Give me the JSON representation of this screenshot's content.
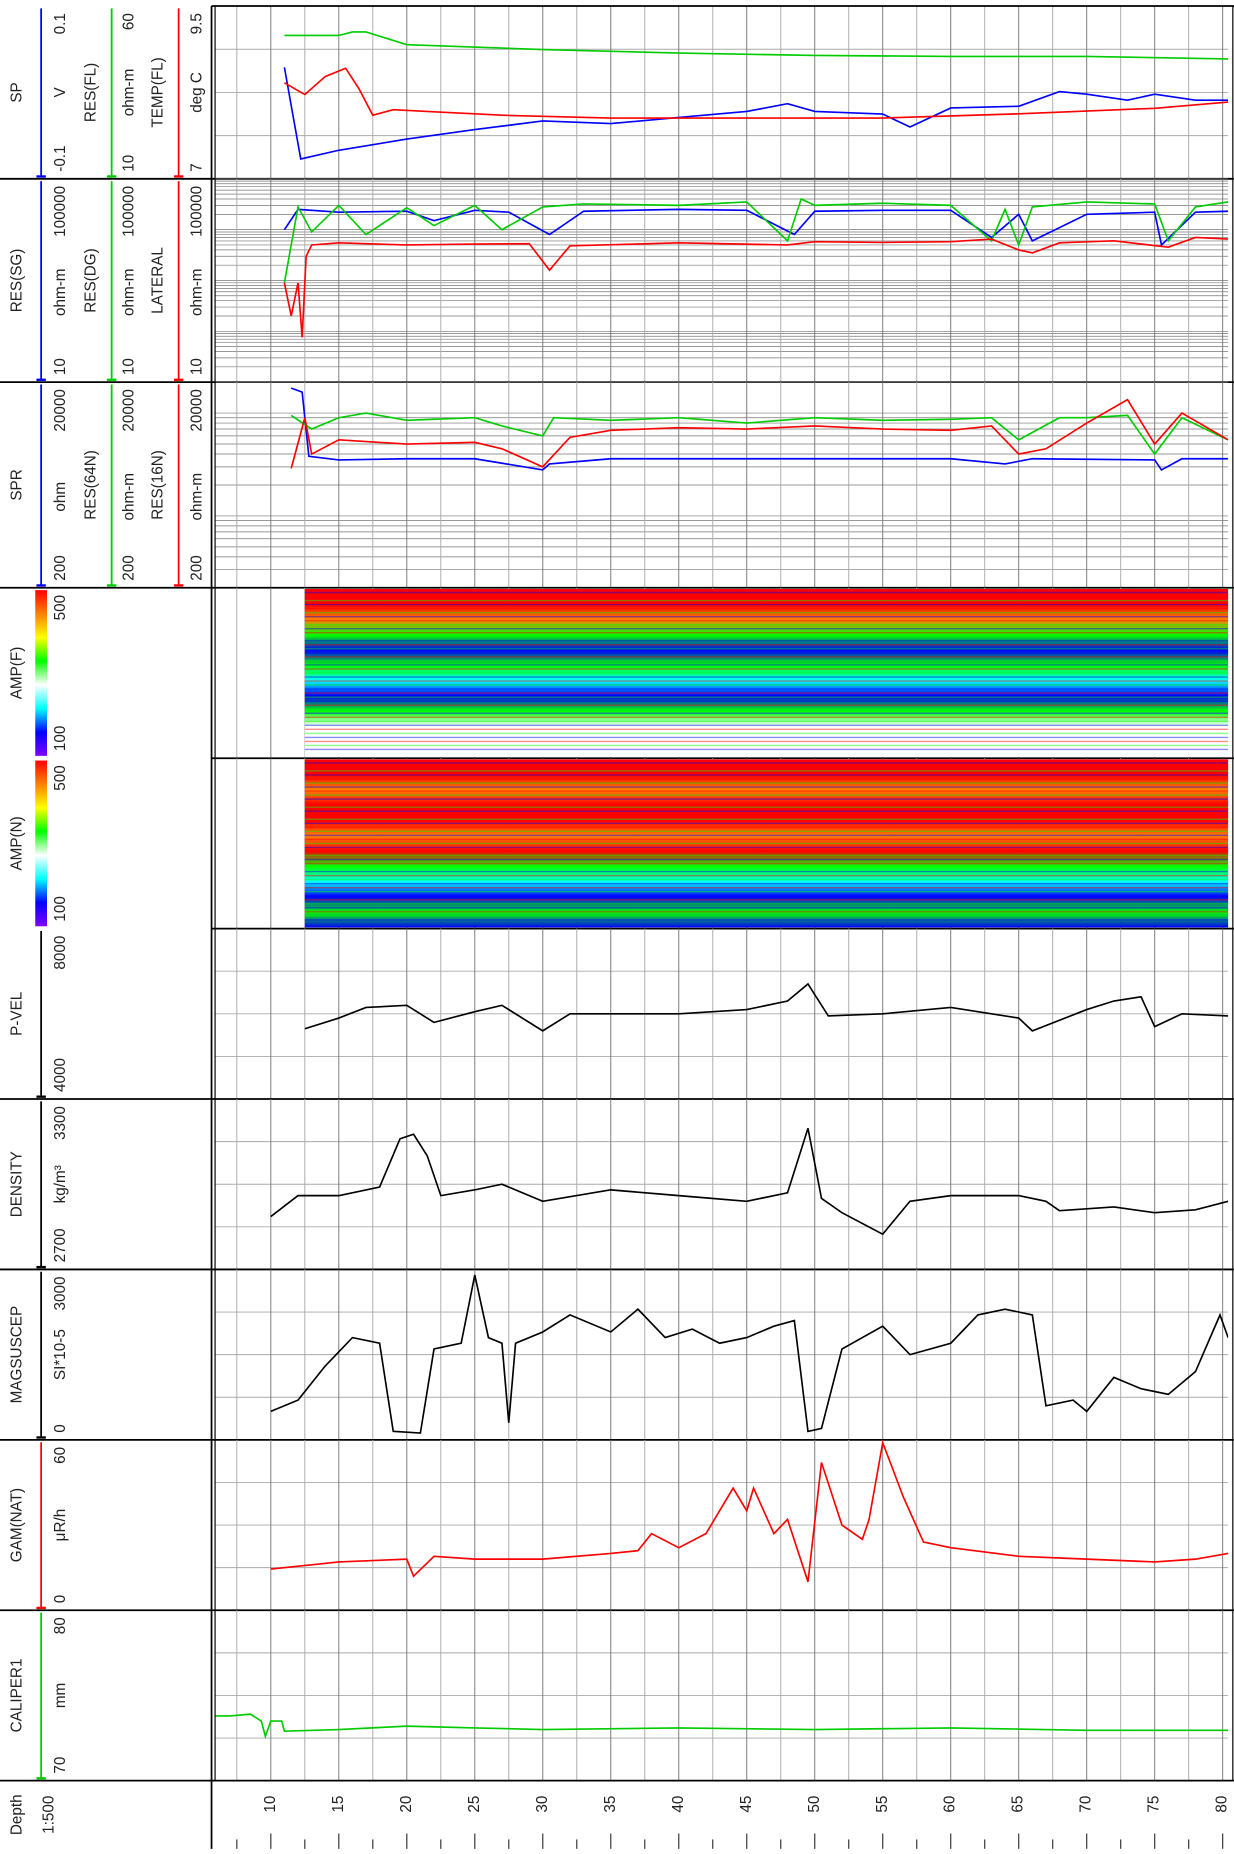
{
  "chart_data": {
    "type": "well-log",
    "depth_label": "Depth",
    "scale_label": "1:500",
    "xlim": [
      5.9,
      80.4
    ],
    "xticks": [
      10,
      15,
      20,
      25,
      30,
      35,
      40,
      45,
      50,
      55,
      60,
      65,
      70,
      75,
      80
    ],
    "minor_xticks": [
      7.5,
      12.5,
      17.5,
      22.5,
      27.5,
      32.5,
      37.5,
      42.5,
      47.5,
      52.5,
      57.5,
      62.5,
      67.5,
      72.5,
      77.5
    ],
    "tracks": [
      {
        "type": "line",
        "grid_lines": [
          -0.05,
          0,
          0.05
        ],
        "series": [
          {
            "name": "SP",
            "unit": "V",
            "color": "#0000ff",
            "ylim": [
              -0.1,
              0.1
            ],
            "x": [
              11,
              12.2,
              15,
              20,
              25,
              30,
              35,
              40,
              45,
              48,
              50,
              55,
              57,
              60,
              65,
              68,
              70,
              73,
              75,
              78,
              80.4
            ],
            "values": [
              0.029,
              -0.077,
              -0.067,
              -0.054,
              -0.043,
              -0.033,
              -0.036,
              -0.029,
              -0.022,
              -0.013,
              -0.022,
              -0.025,
              -0.04,
              -0.018,
              -0.016,
              0.001,
              -0.002,
              -0.009,
              -0.002,
              -0.009,
              -0.009
            ]
          },
          {
            "name": "RES(FL)",
            "unit": "ohm-m",
            "color": "#00cc00",
            "ylim": [
              10,
              60
            ],
            "x": [
              11,
              15,
              16,
              17,
              20,
              30,
              40,
              50,
              60,
              70,
              80.4
            ],
            "values": [
              51.5,
              51.5,
              52.5,
              52.5,
              48.8,
              47.4,
              46.4,
              45.7,
              45.4,
              45.4,
              44.7
            ]
          },
          {
            "name": "TEMP(FL)",
            "unit": "deg C",
            "color": "#ff0000",
            "ylim": [
              7,
              9.5
            ],
            "x": [
              11,
              12.5,
              14,
              15.5,
              16.5,
              17.5,
              19,
              22,
              27,
              35,
              45,
              55,
              65,
              75,
              80.4
            ],
            "values": [
              8.39,
              8.22,
              8.48,
              8.6,
              8.3,
              7.92,
              8.0,
              7.97,
              7.92,
              7.88,
              7.88,
              7.88,
              7.94,
              8.02,
              8.11
            ]
          }
        ]
      },
      {
        "type": "line",
        "log_scale": true,
        "grid_lines": [
          10,
          20,
          30,
          40,
          50,
          60,
          70,
          80,
          90,
          100,
          200,
          300,
          400,
          500,
          600,
          700,
          800,
          900,
          1000,
          2000,
          3000,
          4000,
          5000,
          6000,
          7000,
          8000,
          9000,
          10000,
          20000,
          30000,
          40000,
          50000,
          60000,
          70000,
          80000,
          90000,
          100000
        ],
        "series": [
          {
            "name": "RES(SG)",
            "unit": "ohm-m",
            "color": "#0000ff",
            "ylim": [
              10,
              100000
            ],
            "x": [
              11,
              12,
              15,
              20,
              22,
              25,
              27.5,
              30.5,
              33,
              40,
              45,
              48.5,
              50,
              55,
              60,
              63,
              65,
              66,
              70,
              75,
              75.5,
              78,
              80.4
            ],
            "values": [
              10000,
              25000,
              22000,
              23000,
              15000,
              24000,
              22000,
              8000,
              23000,
              25000,
              24000,
              8000,
              23000,
              24000,
              24000,
              7000,
              20000,
              6000,
              20000,
              22000,
              5000,
              22000,
              23000
            ]
          },
          {
            "name": "RES(DG)",
            "unit": "ohm-m",
            "color": "#00cc00",
            "ylim": [
              10,
              100000
            ],
            "x": [
              11,
              12,
              13,
              15,
              17,
              20,
              22,
              25,
              27,
              30,
              33,
              40,
              45,
              48,
              49,
              50,
              55,
              60,
              63,
              64,
              65,
              66,
              70,
              75,
              76,
              78,
              80.4
            ],
            "values": [
              900,
              28000,
              9000,
              30000,
              8000,
              27000,
              12000,
              30000,
              10000,
              28000,
              32000,
              30000,
              35000,
              6000,
              40000,
              30000,
              33000,
              30000,
              6000,
              25000,
              5000,
              28000,
              35000,
              32000,
              6000,
              28000,
              35000
            ]
          },
          {
            "name": "LATERAL",
            "unit": "ohm-m",
            "color": "#ff0000",
            "ylim": [
              10,
              100000
            ],
            "x": [
              11,
              11.5,
              12,
              12.3,
              12.6,
              13,
              15,
              20,
              25,
              29,
              30.5,
              32,
              40,
              48,
              50,
              55,
              60,
              63,
              65,
              66,
              68,
              72,
              76,
              78,
              80.4
            ],
            "values": [
              900,
              200,
              900,
              76,
              3000,
              5000,
              5500,
              5000,
              5200,
              5300,
              1600,
              4800,
              5500,
              5000,
              5800,
              5600,
              5800,
              6500,
              4000,
              3500,
              5500,
              6000,
              4500,
              7000,
              6500
            ]
          }
        ]
      },
      {
        "type": "line",
        "log_scale": true,
        "grid_lines": [
          200,
          300,
          400,
          500,
          600,
          700,
          800,
          900,
          1000,
          2000,
          3000,
          4000,
          5000,
          6000,
          7000,
          8000,
          9000,
          10000,
          20000
        ],
        "series": [
          {
            "name": "SPR",
            "unit": "ohm",
            "color": "#0000ff",
            "ylim": [
              200,
              20000
            ],
            "x": [
              11.5,
              12.3,
              12.8,
              15,
              20,
              25,
              30,
              30.5,
              35,
              40,
              50,
              60,
              64,
              66,
              75,
              75.5,
              77,
              80.4
            ],
            "values": [
              17500,
              16000,
              3800,
              3500,
              3600,
              3600,
              2800,
              3200,
              3600,
              3600,
              3600,
              3600,
              3200,
              3600,
              3500,
              2800,
              3600,
              3600
            ]
          },
          {
            "name": "RES(64N)",
            "unit": "ohm-m",
            "color": "#00cc00",
            "ylim": [
              200,
              20000
            ],
            "x": [
              11.5,
              13,
              15,
              17,
              20,
              25,
              27,
              30,
              30.8,
              35,
              40,
              45,
              50,
              55,
              60,
              63,
              65,
              68,
              70,
              73,
              75,
              77,
              80.4
            ],
            "values": [
              9500,
              7000,
              9000,
              10000,
              8500,
              9000,
              7500,
              6000,
              9000,
              8500,
              9000,
              8000,
              9000,
              8500,
              8700,
              9000,
              5500,
              9000,
              9000,
              9500,
              4000,
              9000,
              5500
            ]
          },
          {
            "name": "RES(16N)",
            "unit": "ohm-m",
            "color": "#ff0000",
            "ylim": [
              200,
              20000
            ],
            "x": [
              11.5,
              12.5,
              13,
              15,
              20,
              25,
              27,
              30,
              32,
              35,
              40,
              45,
              50,
              55,
              60,
              63,
              65,
              67,
              70,
              73,
              75,
              77,
              80.4
            ],
            "values": [
              2900,
              9000,
              4000,
              5500,
              5000,
              5200,
              4500,
              3000,
              5800,
              6800,
              7200,
              7000,
              7500,
              7000,
              6800,
              7500,
              4000,
              4500,
              8000,
              13500,
              5000,
              10000,
              5500
            ]
          }
        ]
      },
      {
        "type": "image",
        "depth_range": [
          12.5,
          80.4
        ],
        "series": [
          {
            "name": "AMP(F)",
            "ylim": [
              100,
              500
            ],
            "colormap": [
              "#8000ff",
              "#0000ff",
              "#00ffff",
              "#ffffff",
              "#00ff00",
              "#ffff00",
              "#ff8000",
              "#ff0000"
            ]
          }
        ]
      },
      {
        "type": "image",
        "depth_range": [
          12.5,
          80.4
        ],
        "series": [
          {
            "name": "AMP(N)",
            "ylim": [
              100,
              500
            ],
            "colormap": [
              "#8000ff",
              "#0000ff",
              "#00ffff",
              "#ffffff",
              "#00ff00",
              "#ffff00",
              "#ff8000",
              "#ff0000"
            ]
          }
        ]
      },
      {
        "type": "line",
        "grid_lines": [
          5000,
          6000,
          7000
        ],
        "series": [
          {
            "name": "P-VEL",
            "color": "#000000",
            "ylim": [
              4000,
              8000
            ],
            "x": [
              12.5,
              15,
              17,
              20,
              22,
              25,
              27,
              30,
              32,
              35,
              40,
              45,
              48,
              49.5,
              51,
              55,
              60,
              65,
              66,
              70,
              72,
              74,
              75,
              77,
              80.4
            ],
            "values": [
              5650,
              5900,
              6150,
              6200,
              5800,
              6050,
              6200,
              5600,
              6000,
              6000,
              6000,
              6100,
              6300,
              6700,
              5950,
              6000,
              6150,
              5900,
              5600,
              6100,
              6300,
              6400,
              5700,
              6000,
              5950
            ]
          }
        ]
      },
      {
        "type": "line",
        "grid_lines": [
          2850,
          3000,
          3150
        ],
        "series": [
          {
            "name": "DENSITY",
            "unit": "kg/m³",
            "color": "#000000",
            "ylim": [
              2700,
              3300
            ],
            "x": [
              10,
              12,
              15,
              18,
              19.5,
              20.5,
              21.5,
              22.5,
              25,
              27,
              30,
              35,
              40,
              45,
              48,
              49.5,
              50.5,
              52,
              55,
              57,
              60,
              65,
              67,
              68,
              72,
              75,
              78,
              80.4
            ],
            "values": [
              2886,
              2960,
              2960,
              2990,
              3160,
              3176,
              3100,
              2960,
              2980,
              3000,
              2940,
              2980,
              2960,
              2940,
              2970,
              3197,
              2950,
              2900,
              2824,
              2940,
              2960,
              2960,
              2940,
              2907,
              2920,
              2900,
              2910,
              2940
            ]
          }
        ]
      },
      {
        "type": "line",
        "grid_lines": [
          750,
          1500,
          2250
        ],
        "series": [
          {
            "name": "MAGSUSCEP",
            "unit": "SI*10-5",
            "color": "#000000",
            "ylim": [
              0,
              3000
            ],
            "x": [
              10,
              12,
              14,
              16,
              18,
              19,
              21,
              22,
              24,
              25,
              26,
              27,
              27.5,
              28,
              30,
              32,
              35,
              37,
              39,
              41,
              43,
              45,
              47,
              48.5,
              49.5,
              50.5,
              52,
              55,
              57,
              60,
              62,
              64,
              66,
              67,
              69,
              70,
              72,
              74,
              76,
              78,
              79.8,
              80.4
            ],
            "values": [
              500,
              700,
              1300,
              1800,
              1700,
              150,
              120,
              1600,
              1700,
              2900,
              1800,
              1700,
              300,
              1700,
              1900,
              2200,
              1900,
              2300,
              1800,
              1950,
              1700,
              1800,
              2000,
              2100,
              150,
              200,
              1600,
              2000,
              1500,
              1700,
              2200,
              2300,
              2200,
              600,
              700,
              500,
              1100,
              900,
              800,
              1200,
              2200,
              1800
            ]
          }
        ]
      },
      {
        "type": "line",
        "grid_lines": [
          15,
          30,
          45
        ],
        "series": [
          {
            "name": "GAM(NAT)",
            "unit": "μR/h",
            "color": "#ff0000",
            "ylim": [
              0,
              60
            ],
            "x": [
              10,
              15,
              20,
              20.5,
              22,
              25,
              30,
              35,
              37,
              38,
              40,
              42,
              44,
              45,
              45.5,
              47,
              48,
              49.5,
              50.5,
              52,
              53.5,
              54,
              55,
              56.5,
              58,
              60,
              65,
              70,
              75,
              78,
              80.4
            ],
            "values": [
              14.5,
              17,
              18,
              12,
              19,
              18,
              18,
              20,
              21,
              27,
              22,
              27,
              43,
              35,
              43,
              27,
              32,
              10,
              52,
              30,
              25,
              32,
              59,
              40,
              24,
              22,
              19,
              18,
              17,
              18,
              20
            ]
          }
        ]
      },
      {
        "type": "line",
        "grid_lines": [
          72.5,
          75,
          77.5
        ],
        "series": [
          {
            "name": "CALIPER1",
            "unit": "mm",
            "color": "#00cc00",
            "ylim": [
              70,
              80
            ],
            "x": [
              5.9,
              7,
              8.5,
              9.3,
              9.6,
              10,
              10.8,
              11,
              15,
              20,
              25,
              30,
              40,
              50,
              60,
              70,
              80.4
            ],
            "values": [
              73.8,
              73.8,
              73.9,
              73.5,
              72.6,
              73.5,
              73.5,
              72.9,
              73.0,
              73.2,
              73.1,
              73.0,
              73.1,
              73.0,
              73.1,
              72.95,
              72.95
            ]
          }
        ]
      }
    ]
  }
}
